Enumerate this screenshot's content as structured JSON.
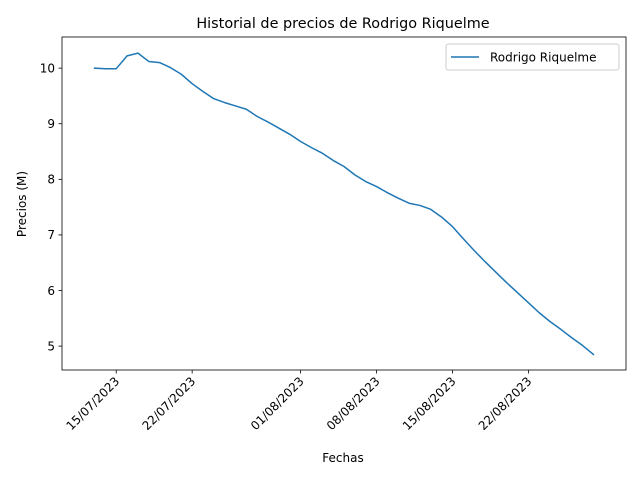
{
  "chart_data": {
    "type": "line",
    "title": "Historial de precios de Rodrigo Riquelme",
    "xlabel": "Fechas",
    "ylabel": "Precios (M)",
    "x_ticks": [
      "15/07/2023",
      "22/07/2023",
      "01/08/2023",
      "08/08/2023",
      "15/08/2023",
      "22/08/2023"
    ],
    "y_ticks": [
      5,
      6,
      7,
      8,
      9,
      10
    ],
    "xlim": [
      "2023-07-10",
      "2023-08-31"
    ],
    "ylim": [
      4.57,
      10.56
    ],
    "legend": {
      "position": "upper right"
    },
    "grid": false,
    "series": [
      {
        "name": "Rodrigo Riquelme",
        "color": "#1f77b4",
        "x": [
          "2023-07-13",
          "2023-07-14",
          "2023-07-15",
          "2023-07-16",
          "2023-07-17",
          "2023-07-18",
          "2023-07-19",
          "2023-07-20",
          "2023-07-21",
          "2023-07-22",
          "2023-07-23",
          "2023-07-24",
          "2023-07-25",
          "2023-07-26",
          "2023-07-27",
          "2023-07-28",
          "2023-07-29",
          "2023-07-30",
          "2023-07-31",
          "2023-08-01",
          "2023-08-02",
          "2023-08-03",
          "2023-08-04",
          "2023-08-05",
          "2023-08-06",
          "2023-08-07",
          "2023-08-08",
          "2023-08-09",
          "2023-08-10",
          "2023-08-11",
          "2023-08-12",
          "2023-08-13",
          "2023-08-14",
          "2023-08-15",
          "2023-08-16",
          "2023-08-17",
          "2023-08-18",
          "2023-08-19",
          "2023-08-20",
          "2023-08-21",
          "2023-08-22",
          "2023-08-23",
          "2023-08-24",
          "2023-08-25",
          "2023-08-26",
          "2023-08-27",
          "2023-08-28"
        ],
        "y": [
          10.0,
          9.99,
          9.99,
          10.22,
          10.27,
          10.12,
          10.1,
          10.01,
          9.89,
          9.72,
          9.58,
          9.45,
          9.38,
          9.32,
          9.26,
          9.13,
          9.03,
          8.92,
          8.81,
          8.68,
          8.57,
          8.47,
          8.34,
          8.23,
          8.08,
          7.96,
          7.87,
          7.76,
          7.66,
          7.57,
          7.53,
          7.46,
          7.32,
          7.15,
          6.93,
          6.72,
          6.52,
          6.33,
          6.14,
          5.96,
          5.78,
          5.6,
          5.44,
          5.3,
          5.15,
          5.01,
          4.85
        ]
      }
    ]
  }
}
